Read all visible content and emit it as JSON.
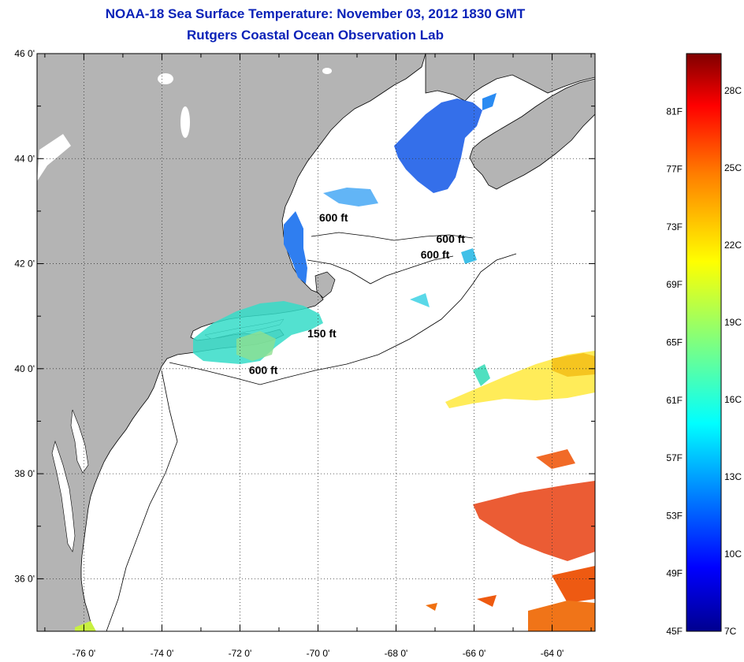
{
  "title": "NOAA-18 Sea Surface Temperature:  November 03, 2012 1830 GMT",
  "subtitle": "Rutgers Coastal Ocean Observation Lab",
  "map": {
    "lon_ticks": [
      -76,
      -74,
      -72,
      -70,
      -68,
      -66,
      -64
    ],
    "lon_tick_labels": [
      "-76 0'",
      "-74 0'",
      "-72 0'",
      "-70 0'",
      "-68 0'",
      "-66 0'",
      "-64 0'"
    ],
    "lat_ticks": [
      36,
      38,
      40,
      42,
      44,
      46
    ],
    "lat_tick_labels": [
      "36 0'",
      "38 0'",
      "40 0'",
      "42 0'",
      "44 0'",
      "46 0'"
    ],
    "lon_range": [
      -77.2,
      -62.9
    ],
    "lat_range": [
      35,
      46
    ],
    "contour_labels": [
      {
        "text": "600 ft",
        "lon": -69.6,
        "lat": 42.8
      },
      {
        "text": "600 ft",
        "lon": -66.6,
        "lat": 42.4
      },
      {
        "text": "600 ft",
        "lon": -67.0,
        "lat": 42.1
      },
      {
        "text": "150 ft",
        "lon": -69.9,
        "lat": 40.6
      },
      {
        "text": "600 ft",
        "lon": -71.4,
        "lat": 39.9
      }
    ],
    "colors": {
      "land": "#b4b4b4",
      "ocean": "#ffffff",
      "title": "#0a22b8"
    }
  },
  "colorbar": {
    "f_labels": [
      "45F",
      "49F",
      "53F",
      "57F",
      "61F",
      "65F",
      "69F",
      "73F",
      "77F",
      "81F"
    ],
    "c_labels": [
      "7C",
      "10C",
      "13C",
      "16C",
      "19C",
      "22C",
      "25C",
      "28C"
    ],
    "colors": [
      "#00008f",
      "#0000ff",
      "#007fff",
      "#00ffff",
      "#7fff7f",
      "#ffff00",
      "#ff7f00",
      "#ff0000",
      "#7f0000"
    ]
  }
}
